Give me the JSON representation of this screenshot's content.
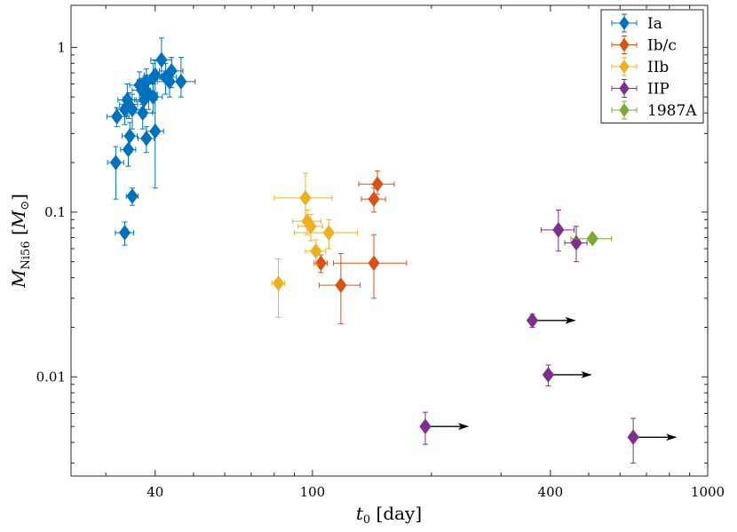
{
  "chart_data": {
    "type": "scatter",
    "title": "",
    "xlabel": "t0 [day]",
    "ylabel": "MNi56 [M⊙]",
    "xscale": "log",
    "yscale": "log",
    "xlim": [
      24.5,
      1000
    ],
    "ylim": [
      0.0025,
      1.8
    ],
    "xticks": [
      40,
      100,
      400,
      1000
    ],
    "xtick_labels": [
      "40",
      "100",
      "400",
      "1000"
    ],
    "yticks": [
      0.01,
      0.1,
      1
    ],
    "ytick_labels": [
      "0.01",
      "0.1",
      "1"
    ],
    "grid": false,
    "legend_position": "top-right",
    "arrow_color": "#000000",
    "series": [
      {
        "name": "Ia",
        "color": "#0072BD",
        "points": [
          {
            "x": 32.0,
            "y": 0.38,
            "xerr": 1.8,
            "yerr_lo": 0.05,
            "yerr_hi": 0.05
          },
          {
            "x": 33.5,
            "y": 0.42,
            "xerr": 1.6,
            "yerr_lo": 0.08,
            "yerr_hi": 0.08
          },
          {
            "x": 34.0,
            "y": 0.48,
            "xerr": 1.8,
            "yerr_lo": 0.1,
            "yerr_hi": 0.12
          },
          {
            "x": 34.3,
            "y": 0.45,
            "xerr": 1.8,
            "yerr_lo": 0.08,
            "yerr_hi": 0.08
          },
          {
            "x": 35.0,
            "y": 0.42,
            "xerr": 1.8,
            "yerr_lo": 0.1,
            "yerr_hi": 0.1
          },
          {
            "x": 34.5,
            "y": 0.29,
            "xerr": 1.5,
            "yerr_lo": 0.06,
            "yerr_hi": 0.06
          },
          {
            "x": 34.2,
            "y": 0.24,
            "xerr": 1.5,
            "yerr_lo": 0.05,
            "yerr_hi": 0.06
          },
          {
            "x": 31.8,
            "y": 0.2,
            "xerr": 1.5,
            "yerr_lo": 0.08,
            "yerr_hi": 0.05
          },
          {
            "x": 35.0,
            "y": 0.125,
            "xerr": 1.2,
            "yerr_lo": 0.015,
            "yerr_hi": 0.015
          },
          {
            "x": 33.5,
            "y": 0.075,
            "xerr": 1.8,
            "yerr_lo": 0.012,
            "yerr_hi": 0.012
          },
          {
            "x": 36.5,
            "y": 0.59,
            "xerr": 2.0,
            "yerr_lo": 0.12,
            "yerr_hi": 0.12
          },
          {
            "x": 37.0,
            "y": 0.55,
            "xerr": 2.0,
            "yerr_lo": 0.1,
            "yerr_hi": 0.1
          },
          {
            "x": 37.5,
            "y": 0.48,
            "xerr": 2.0,
            "yerr_lo": 0.1,
            "yerr_hi": 0.1
          },
          {
            "x": 37.2,
            "y": 0.4,
            "xerr": 2.2,
            "yerr_lo": 0.08,
            "yerr_hi": 0.08
          },
          {
            "x": 38.0,
            "y": 0.62,
            "xerr": 2.0,
            "yerr_lo": 0.12,
            "yerr_hi": 0.12
          },
          {
            "x": 38.5,
            "y": 0.52,
            "xerr": 2.0,
            "yerr_lo": 0.1,
            "yerr_hi": 0.1
          },
          {
            "x": 38.0,
            "y": 0.28,
            "xerr": 1.8,
            "yerr_lo": 0.05,
            "yerr_hi": 0.05
          },
          {
            "x": 39.5,
            "y": 0.65,
            "xerr": 2.2,
            "yerr_lo": 0.15,
            "yerr_hi": 0.15
          },
          {
            "x": 39.5,
            "y": 0.5,
            "xerr": 2.2,
            "yerr_lo": 0.1,
            "yerr_hi": 0.1
          },
          {
            "x": 40.0,
            "y": 0.68,
            "xerr": 2.5,
            "yerr_lo": 0.15,
            "yerr_hi": 0.15
          },
          {
            "x": 40.0,
            "y": 0.31,
            "xerr": 2.0,
            "yerr_lo": 0.17,
            "yerr_hi": 0.17
          },
          {
            "x": 41.5,
            "y": 0.84,
            "xerr": 2.5,
            "yerr_lo": 0.2,
            "yerr_hi": 0.3
          },
          {
            "x": 42.5,
            "y": 0.66,
            "xerr": 2.8,
            "yerr_lo": 0.14,
            "yerr_hi": 0.14
          },
          {
            "x": 43.5,
            "y": 0.62,
            "xerr": 3.0,
            "yerr_lo": 0.12,
            "yerr_hi": 0.12
          },
          {
            "x": 44.0,
            "y": 0.72,
            "xerr": 3.0,
            "yerr_lo": 0.15,
            "yerr_hi": 0.15
          },
          {
            "x": 46.5,
            "y": 0.62,
            "xerr": 4.0,
            "yerr_lo": 0.12,
            "yerr_hi": 0.25
          }
        ]
      },
      {
        "name": "Ib/c",
        "color": "#D95319",
        "points": [
          {
            "x": 105,
            "y": 0.049,
            "xerr": 4,
            "yerr_lo": 0.006,
            "yerr_hi": 0.006
          },
          {
            "x": 118,
            "y": 0.036,
            "xerr": 14,
            "yerr_lo": 0.015,
            "yerr_hi": 0.02
          },
          {
            "x": 143,
            "y": 0.049,
            "xerr": 30,
            "yerr_lo": 0.019,
            "yerr_hi": 0.024
          },
          {
            "x": 143,
            "y": 0.12,
            "xerr": 10,
            "yerr_lo": 0.02,
            "yerr_hi": 0.02
          },
          {
            "x": 146,
            "y": 0.148,
            "xerr": 15,
            "yerr_lo": 0.02,
            "yerr_hi": 0.03
          }
        ]
      },
      {
        "name": "IIb",
        "color": "#EDB120",
        "points": [
          {
            "x": 82,
            "y": 0.037,
            "xerr": 3,
            "yerr_lo": 0.014,
            "yerr_hi": 0.015
          },
          {
            "x": 96,
            "y": 0.122,
            "xerr": 16,
            "yerr_lo": 0.04,
            "yerr_hi": 0.05
          },
          {
            "x": 97,
            "y": 0.088,
            "xerr": 8,
            "yerr_lo": 0.015,
            "yerr_hi": 0.015
          },
          {
            "x": 99,
            "y": 0.082,
            "xerr": 7,
            "yerr_lo": 0.015,
            "yerr_hi": 0.015
          },
          {
            "x": 102,
            "y": 0.058,
            "xerr": 6,
            "yerr_lo": 0.01,
            "yerr_hi": 0.01
          },
          {
            "x": 110,
            "y": 0.075,
            "xerr": 20,
            "yerr_lo": 0.015,
            "yerr_hi": 0.015
          }
        ]
      },
      {
        "name": "IIP",
        "color": "#7E2F8E",
        "points": [
          {
            "x": 419,
            "y": 0.078,
            "xerr": 40,
            "yerr_lo": 0.02,
            "yerr_hi": 0.025
          },
          {
            "x": 465,
            "y": 0.065,
            "xerr": 30,
            "yerr_lo": 0.015,
            "yerr_hi": 0.017
          },
          {
            "x": 360,
            "y": 0.022,
            "xerr": 0,
            "yerr_lo": 0.002,
            "yerr_hi": 0.002,
            "lower_limit": true
          },
          {
            "x": 395,
            "y": 0.0103,
            "xerr": 0,
            "yerr_lo": 0.0015,
            "yerr_hi": 0.0015,
            "lower_limit": true
          },
          {
            "x": 193,
            "y": 0.005,
            "xerr": 0,
            "yerr_lo": 0.0011,
            "yerr_hi": 0.0011,
            "lower_limit": true
          },
          {
            "x": 648,
            "y": 0.0043,
            "xerr": 0,
            "yerr_lo": 0.0013,
            "yerr_hi": 0.0013,
            "lower_limit": true
          }
        ]
      },
      {
        "name": "1987A",
        "color": "#77AC30",
        "points": [
          {
            "x": 511,
            "y": 0.069,
            "xerr": 60,
            "yerr_lo": 0.003,
            "yerr_hi": 0.003
          }
        ]
      }
    ]
  }
}
